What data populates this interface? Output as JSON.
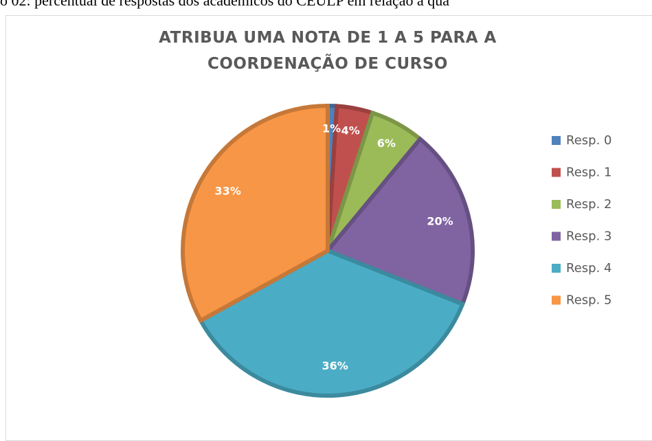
{
  "caption": "o 02: percentual de respostas dos acadêmicos do CEULP em relação à qua",
  "chart_data": {
    "type": "pie",
    "title": "ATRIBUA UMA NOTA DE 1 A 5 PARA A COORDENAÇÃO DE CURSO",
    "categories": [
      "Resp. 0",
      "Resp. 1",
      "Resp. 2",
      "Resp. 3",
      "Resp. 4",
      "Resp. 5"
    ],
    "values": [
      1,
      4,
      6,
      20,
      36,
      33
    ],
    "value_labels": [
      "1%",
      "4%",
      "6%",
      "20%",
      "36%",
      "33%"
    ],
    "colors": [
      "#4f81bd",
      "#c0504d",
      "#9bbb59",
      "#8064a2",
      "#4bacc6",
      "#f79646"
    ],
    "legend": "right"
  }
}
